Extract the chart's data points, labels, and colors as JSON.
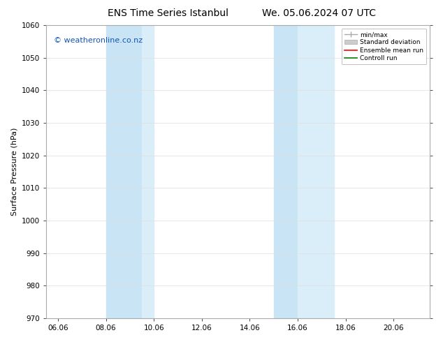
{
  "title_left": "ENS Time Series Istanbul",
  "title_right": "We. 05.06.2024 07 UTC",
  "ylabel": "Surface Pressure (hPa)",
  "ylim": [
    970,
    1060
  ],
  "yticks": [
    970,
    980,
    990,
    1000,
    1010,
    1020,
    1030,
    1040,
    1050,
    1060
  ],
  "xtick_labels": [
    "06.06",
    "08.06",
    "10.06",
    "12.06",
    "14.06",
    "16.06",
    "18.06",
    "20.06"
  ],
  "xtick_positions": [
    6,
    8,
    10,
    12,
    14,
    16,
    18,
    20
  ],
  "xlim": [
    5.5,
    21.5
  ],
  "band1_x0": 8.0,
  "band1_x1": 9.5,
  "band1b_x0": 9.5,
  "band1b_x1": 10.0,
  "band2_x0": 15.0,
  "band2_x1": 16.0,
  "band2b_x0": 16.0,
  "band2b_x1": 17.5,
  "shade_color_dark": "#c8e4f5",
  "shade_color_light": "#daeef9",
  "watermark": "© weatheronline.co.nz",
  "legend_items": [
    {
      "label": "min/max",
      "color": "#aaaaaa"
    },
    {
      "label": "Standard deviation",
      "color": "#cccccc"
    },
    {
      "label": "Ensemble mean run",
      "color": "red"
    },
    {
      "label": "Controll run",
      "color": "green"
    }
  ],
  "background_color": "#ffffff",
  "plot_bg_color": "#ffffff",
  "grid_color": "#dddddd",
  "title_fontsize": 10,
  "tick_fontsize": 7.5,
  "label_fontsize": 8,
  "watermark_color": "#1155bb",
  "watermark_fontsize": 8
}
